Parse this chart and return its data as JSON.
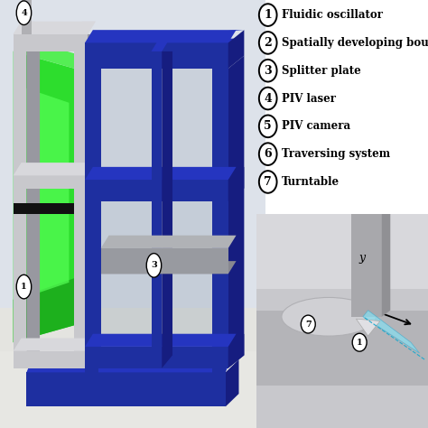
{
  "background_color": "#f0f0f0",
  "fig_width": 4.74,
  "fig_height": 4.74,
  "legend_items": [
    {
      "num": "1",
      "text": "Fluidic oscillator"
    },
    {
      "num": "2",
      "text": "Spatially developing boundary layer"
    },
    {
      "num": "3",
      "text": "Splitter plate"
    },
    {
      "num": "4",
      "text": "PIV laser"
    },
    {
      "num": "5",
      "text": "PIV camera"
    },
    {
      "num": "6",
      "text": "Traversing system"
    },
    {
      "num": "7",
      "text": "Turntable"
    }
  ],
  "colors": {
    "blue": "#1e2fa0",
    "blue_dark": "#161d80",
    "blue_light": "#2535c0",
    "gray_light": "#c8c8cc",
    "gray_mid": "#9898a0",
    "gray_dark": "#787880",
    "green_bright": "#2ddd2d",
    "green_mid": "#1db01d",
    "green_dark": "#0f8f0f",
    "bg_top": "#dde0e8",
    "bg_floor": "#e8e8e4",
    "glass": "#9aacbc",
    "shelf_top": "#b8b8bc",
    "shelf_side": "#949498"
  }
}
